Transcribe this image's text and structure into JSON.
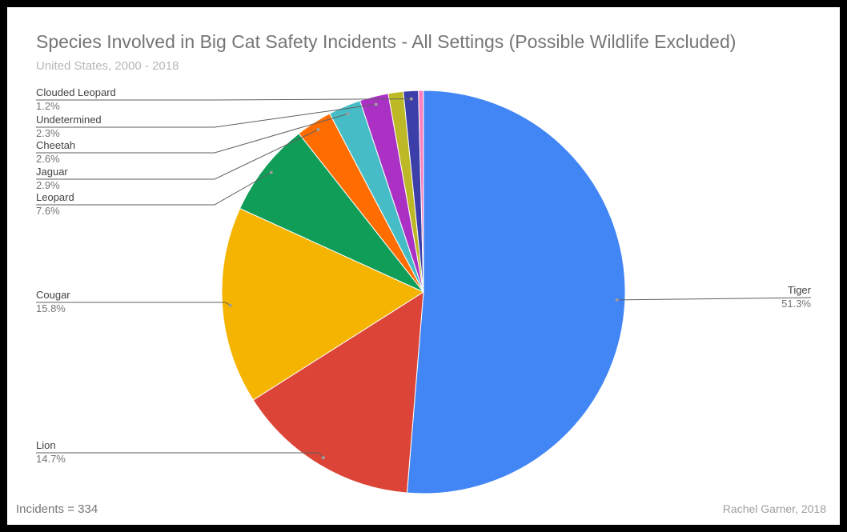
{
  "chart_data": {
    "type": "pie",
    "title": "Species Involved in Big Cat Safety Incidents - All Settings (Possible Wildlife Excluded)",
    "subtitle": "United States, 2000 - 2018",
    "slices": [
      {
        "label": "Tiger",
        "value": 51.3,
        "value_label": "51.3%",
        "color": "#4285f4"
      },
      {
        "label": "Lion",
        "value": 14.7,
        "value_label": "14.7%",
        "color": "#db4437"
      },
      {
        "label": "Cougar",
        "value": 15.8,
        "value_label": "15.8%",
        "color": "#f4b400"
      },
      {
        "label": "Leopard",
        "value": 7.6,
        "value_label": "7.6%",
        "color": "#0f9d58"
      },
      {
        "label": "Jaguar",
        "value": 2.9,
        "value_label": "2.9%",
        "color": "#ff6d01"
      },
      {
        "label": "Cheetah",
        "value": 2.6,
        "value_label": "2.6%",
        "color": "#46bdc6"
      },
      {
        "label": "Undetermined",
        "value": 2.3,
        "value_label": "2.3%",
        "color": "#ab30c4"
      },
      {
        "label": "",
        "value": 1.2,
        "value_label": "",
        "color": "#bdb825"
      },
      {
        "label": "Clouded Leopard",
        "value": 1.2,
        "value_label": "1.2%",
        "color": "#3d3fa8"
      },
      {
        "label": "",
        "value": 0.4,
        "value_label": "",
        "color": "#ff7fbf"
      }
    ],
    "legend": "none"
  },
  "footer": {
    "note": "Incidents = 334",
    "credit": "Rachel Garner, 2018"
  }
}
